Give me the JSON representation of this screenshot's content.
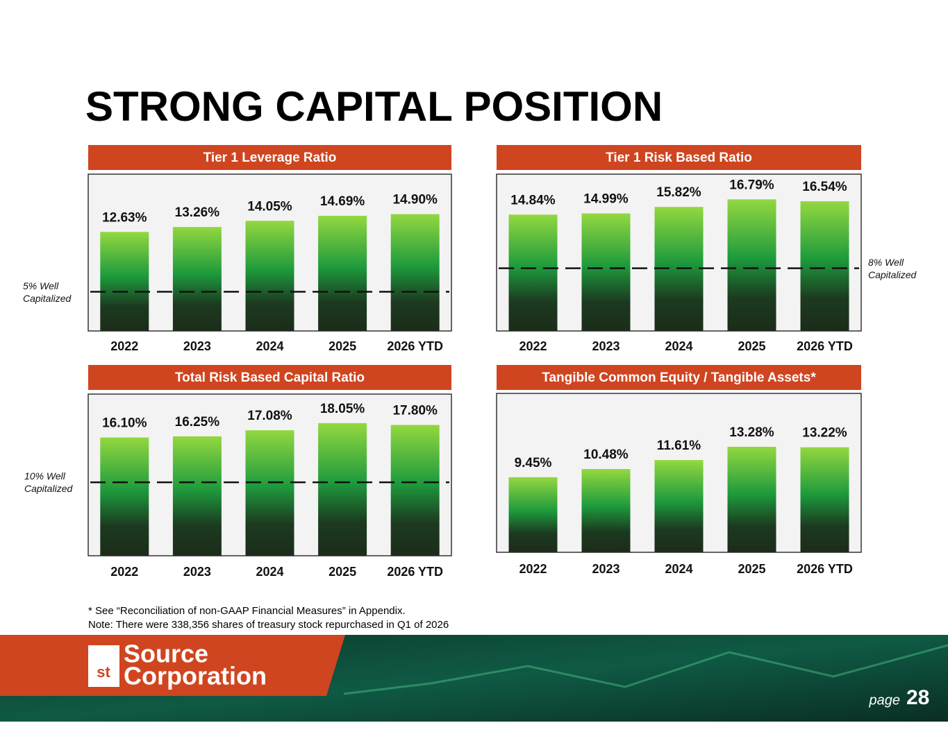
{
  "title": "STRONG CAPITAL POSITION",
  "chart_data": [
    {
      "type": "bar",
      "title": "Tier 1 Leverage Ratio",
      "categories": [
        "2022",
        "2023",
        "2024",
        "2025",
        "2026 YTD"
      ],
      "values": [
        12.63,
        13.26,
        14.05,
        14.69,
        14.9
      ],
      "value_labels": [
        "12.63%",
        "13.26%",
        "14.05%",
        "14.69%",
        "14.90%"
      ],
      "ylim": [
        0,
        20
      ],
      "reference_line": {
        "value": 5,
        "label": "5% Well Capitalized"
      }
    },
    {
      "type": "bar",
      "title": "Tier 1 Risk Based Ratio",
      "categories": [
        "2022",
        "2023",
        "2024",
        "2025",
        "2026 YTD"
      ],
      "values": [
        14.84,
        14.99,
        15.82,
        16.79,
        16.54
      ],
      "value_labels": [
        "14.84%",
        "14.99%",
        "15.82%",
        "16.79%",
        "16.54%"
      ],
      "ylim": [
        0,
        20
      ],
      "reference_line": {
        "value": 8,
        "label": "8% Well Capitalized"
      }
    },
    {
      "type": "bar",
      "title": "Total Risk Based Capital Ratio",
      "categories": [
        "2022",
        "2023",
        "2024",
        "2025",
        "2026 YTD"
      ],
      "values": [
        16.1,
        16.25,
        17.08,
        18.05,
        17.8
      ],
      "value_labels": [
        "16.10%",
        "16.25%",
        "17.08%",
        "18.05%",
        "17.80%"
      ],
      "ylim": [
        0,
        22
      ],
      "reference_line": {
        "value": 10,
        "label": "10% Well Capitalized"
      }
    },
    {
      "type": "bar",
      "title": "Tangible Common Equity / Tangible Assets*",
      "categories": [
        "2022",
        "2023",
        "2024",
        "2025",
        "2026 YTD"
      ],
      "values": [
        9.45,
        10.48,
        11.61,
        13.28,
        13.22
      ],
      "value_labels": [
        "9.45%",
        "10.48%",
        "11.61%",
        "13.28%",
        "13.22%"
      ],
      "ylim": [
        0,
        20
      ]
    }
  ],
  "footnotes": [
    "* See “Reconciliation of non-GAAP Financial Measures” in Appendix.",
    "Note: There were 338,356 shares of treasury stock repurchased in Q1 of 2026"
  ],
  "logo": {
    "mark": "st",
    "line1": "Source",
    "line2": "Corporation"
  },
  "page": {
    "label": "page",
    "number": 28
  }
}
